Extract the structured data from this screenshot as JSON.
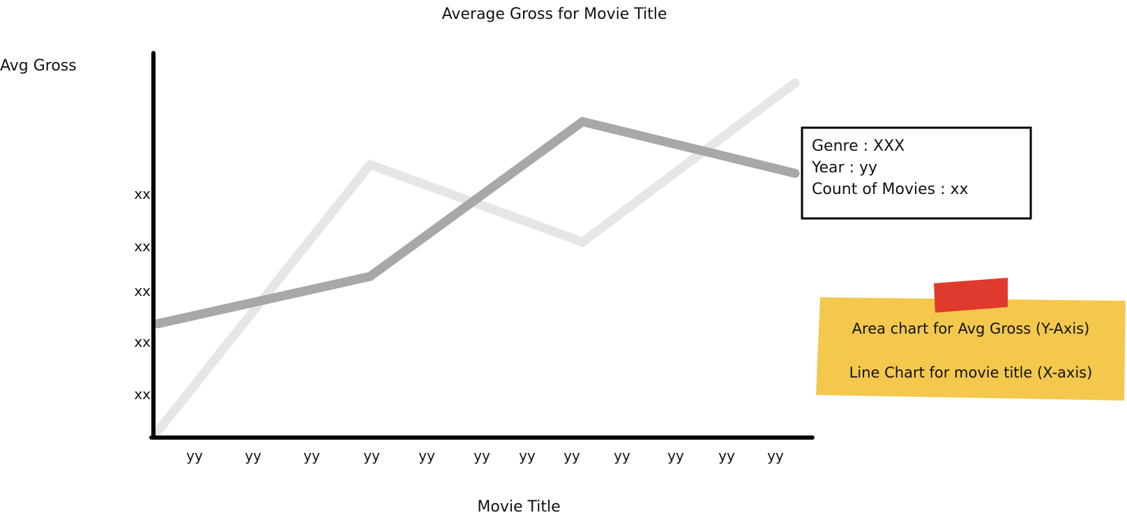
{
  "chart_data": {
    "type": "line",
    "title": "Average Gross for Movie Title",
    "xlabel": "Movie Title",
    "ylabel": "Avg Gross",
    "x_tick_labels": [
      "yy",
      "yy",
      "yy",
      "yy",
      "yy",
      "yy",
      "yy",
      "yy",
      "yy",
      "yy",
      "yy",
      "yy"
    ],
    "y_tick_labels": [
      "xx",
      "xx",
      "xx",
      "xx",
      "xx"
    ],
    "series": [
      {
        "values": [
          0.0,
          6.2,
          4.4,
          8.1
        ],
        "color": "#e6e6e6"
      },
      {
        "values": [
          2.5,
          3.6,
          7.2,
          6.0
        ],
        "color": "#a8a8a8"
      }
    ],
    "ylim": [
      0,
      8
    ],
    "grid": false,
    "legend": "none"
  },
  "tooltip": {
    "lines": [
      "Genre : XXX",
      "Year : yy",
      "Count of Movies : xx"
    ]
  },
  "sticky_note": {
    "lines": [
      "Area chart for Avg Gross (Y-Axis)",
      "Line Chart for movie title (X-axis)"
    ],
    "color": "#f3c84d",
    "tape_color": "#e03a2f"
  }
}
